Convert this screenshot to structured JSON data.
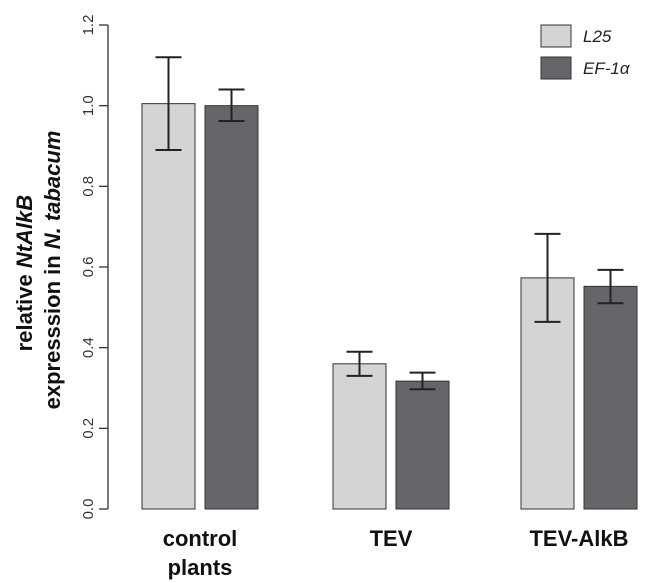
{
  "chart_data": {
    "type": "bar",
    "categories": [
      [
        "control",
        "plants"
      ],
      [
        "TEV"
      ],
      [
        "TEV-AlkB"
      ]
    ],
    "series": [
      {
        "name": "L25",
        "color": "#d4d4d6",
        "values": [
          1.005,
          0.36,
          0.573
        ],
        "err_low": [
          0.89,
          0.33,
          0.464
        ],
        "err_high": [
          1.12,
          0.39,
          0.682
        ]
      },
      {
        "name": "EF-1α",
        "color": "#66666a",
        "values": [
          1.0,
          0.317,
          0.552
        ],
        "err_low": [
          0.962,
          0.297,
          0.51
        ],
        "err_high": [
          1.04,
          0.338,
          0.593
        ]
      }
    ],
    "y_ticks": [
      "0.0",
      "0.2",
      "0.4",
      "0.6",
      "0.8",
      "1.0",
      "1.2"
    ],
    "ylim": [
      0,
      1.2
    ],
    "ylabel": {
      "line1_prefix": "relative ",
      "line1_italic": "NtAlkB",
      "line2_prefix": "expresssion in ",
      "line2_italic": "N. tabacum"
    },
    "legend_position": "top-right",
    "grid": false
  }
}
